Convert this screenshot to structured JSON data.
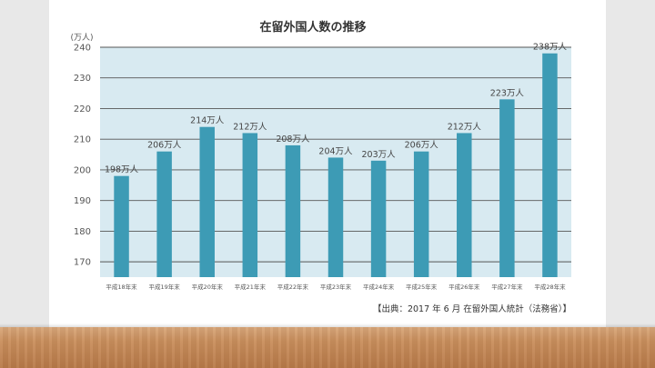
{
  "chart_data": {
    "type": "bar",
    "title": "在留外国人数の推移",
    "ylabel": "(万人)",
    "ylim": [
      165,
      240
    ],
    "yticks": [
      170,
      180,
      190,
      200,
      210,
      220,
      230,
      240
    ],
    "categories": [
      "平成18年末",
      "平成19年末",
      "平成20年末",
      "平成21年末",
      "平成22年末",
      "平成23年末",
      "平成24年末",
      "平成25年末",
      "平成26年末",
      "平成27年末",
      "平成28年末"
    ],
    "values": [
      198,
      206,
      214,
      212,
      208,
      204,
      203,
      206,
      212,
      223,
      238
    ],
    "data_labels": [
      "198万人",
      "206万人",
      "214万人",
      "212万人",
      "208万人",
      "204万人",
      "203万人",
      "206万人",
      "212万人",
      "223万人",
      "238万人"
    ],
    "grid": true,
    "bar_color": "#3d9bb5",
    "plot_bg": "#d8eaf1",
    "source": "【出典：2017 年 6 月 在留外国人統計（法務省）】"
  }
}
